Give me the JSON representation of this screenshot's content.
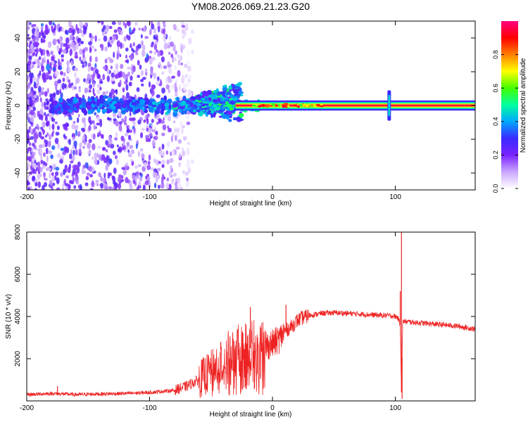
{
  "title": "YM08.2026.069.21.23.G20",
  "colors": {
    "snr_line": "#ee2222",
    "spectrogram_floor": "#ffffff"
  },
  "chart_data": [
    {
      "type": "heatmap",
      "name": "spectrogram",
      "xlabel": "Height of straight line (km)",
      "ylabel": "Frequency (Hz)",
      "xlim": [
        -200,
        165
      ],
      "ylim": [
        -50,
        50
      ],
      "xticks": [
        -200,
        -100,
        0,
        100
      ],
      "xtick_labels": [
        "-200",
        "-100",
        "0",
        "100"
      ],
      "yticks": [
        -40,
        -20,
        0,
        20,
        40
      ],
      "ytick_labels": [
        "-40",
        "-20",
        "0",
        "20",
        "40"
      ],
      "colorbar": {
        "label": "Normalized spectral amplitude",
        "range": [
          0,
          1
        ],
        "ticks": [
          0.0,
          0.2,
          0.4,
          0.6,
          0.8
        ],
        "tick_labels": [
          "0.0",
          "0.2",
          "0.4",
          "0.6",
          "0.8"
        ],
        "colormap": [
          "#ffffff",
          "#c9a6ff",
          "#7a22ff",
          "#3a2aff",
          "#00a8ff",
          "#00ffa0",
          "#44ff00",
          "#ffff00",
          "#ff7f00",
          "#ff0000",
          "#ff0080"
        ]
      },
      "features": {
        "noise_region_km": [
          -200,
          -80
        ],
        "carrier_frequency_hz": 0,
        "carrier_start_km": -30,
        "carrier_end_km": 165,
        "carrier_amplitude": 0.95,
        "spread_cone_km": [
          -80,
          -25
        ],
        "spread_cone_max_hz": 15,
        "spike_at_km": 95,
        "spike_halfwidth_hz": 9
      }
    },
    {
      "type": "line",
      "name": "snr",
      "xlabel": "Height of straight line (km)",
      "ylabel": "SNR (10 * v/v)",
      "xlim": [
        -200,
        165
      ],
      "ylim": [
        0,
        8000
      ],
      "xticks": [
        -200,
        -100,
        0,
        100
      ],
      "xtick_labels": [
        "-200",
        "-100",
        "0",
        "100"
      ],
      "yticks": [
        2000,
        4000,
        6000,
        8000
      ],
      "ytick_labels": [
        "2000",
        "4000",
        "6000",
        "8000"
      ],
      "series": [
        {
          "name": "SNR",
          "x": [
            -200,
            -180,
            -160,
            -140,
            -120,
            -100,
            -80,
            -70,
            -60,
            -50,
            -45,
            -40,
            -35,
            -30,
            -25,
            -20,
            -15,
            -10,
            -5,
            0,
            5,
            10,
            15,
            20,
            25,
            30,
            40,
            50,
            60,
            70,
            80,
            90,
            95,
            100,
            102,
            104,
            105,
            106,
            107,
            108,
            110,
            120,
            130,
            140,
            150,
            160,
            165
          ],
          "y": [
            300,
            350,
            300,
            330,
            350,
            400,
            500,
            700,
            1000,
            1400,
            1700,
            2000,
            2200,
            2300,
            2400,
            2500,
            2500,
            2500,
            2600,
            2700,
            2900,
            3300,
            3500,
            3800,
            3950,
            4050,
            4150,
            4180,
            4150,
            4120,
            4080,
            4050,
            4050,
            4000,
            3950,
            3600,
            400,
            3700,
            3800,
            3750,
            3750,
            3700,
            3650,
            3600,
            3550,
            3450,
            3400
          ]
        }
      ],
      "spikes": [
        {
          "x": -175,
          "y": 700
        },
        {
          "x": -18,
          "y": 4450
        },
        {
          "x": 11,
          "y": 4550
        },
        {
          "x": 104,
          "y": 5200
        },
        {
          "x": 105,
          "y": 8000
        },
        {
          "x": 105.5,
          "y": 100
        }
      ]
    }
  ]
}
